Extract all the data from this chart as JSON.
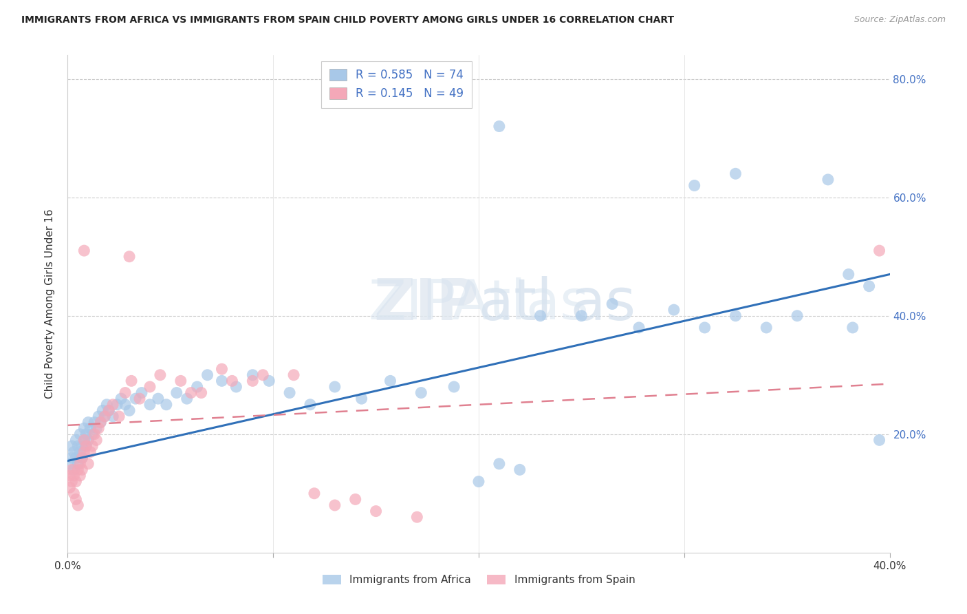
{
  "title": "IMMIGRANTS FROM AFRICA VS IMMIGRANTS FROM SPAIN CHILD POVERTY AMONG GIRLS UNDER 16 CORRELATION CHART",
  "source": "Source: ZipAtlas.com",
  "ylabel": "Child Poverty Among Girls Under 16",
  "xlim": [
    0.0,
    0.4
  ],
  "ylim": [
    0.0,
    0.84
  ],
  "series1_color": "#a8c8e8",
  "series2_color": "#f4a8b8",
  "trendline1_color": "#3070b8",
  "trendline2_color": "#e08090",
  "watermark": "ZIPAtlas",
  "legend_label1": "Immigrants from Africa",
  "legend_label2": "Immigrants from Spain",
  "legend_r1": "0.585",
  "legend_n1": "74",
  "legend_r2": "0.145",
  "legend_n2": "49",
  "tick_color": "#4472c4",
  "africa_x": [
    0.001,
    0.002,
    0.002,
    0.003,
    0.003,
    0.004,
    0.004,
    0.005,
    0.005,
    0.006,
    0.006,
    0.007,
    0.007,
    0.008,
    0.008,
    0.009,
    0.009,
    0.01,
    0.01,
    0.011,
    0.012,
    0.013,
    0.014,
    0.015,
    0.016,
    0.017,
    0.018,
    0.019,
    0.02,
    0.022,
    0.024,
    0.026,
    0.028,
    0.03,
    0.033,
    0.036,
    0.04,
    0.044,
    0.048,
    0.053,
    0.058,
    0.063,
    0.068,
    0.075,
    0.082,
    0.09,
    0.098,
    0.108,
    0.118,
    0.13,
    0.143,
    0.157,
    0.172,
    0.188,
    0.2,
    0.21,
    0.22,
    0.23,
    0.25,
    0.265,
    0.278,
    0.295,
    0.31,
    0.325,
    0.34,
    0.355,
    0.37,
    0.382,
    0.39,
    0.395,
    0.21,
    0.305,
    0.325,
    0.38
  ],
  "africa_y": [
    0.15,
    0.16,
    0.18,
    0.14,
    0.17,
    0.19,
    0.16,
    0.15,
    0.18,
    0.17,
    0.2,
    0.18,
    0.16,
    0.19,
    0.21,
    0.18,
    0.2,
    0.19,
    0.22,
    0.21,
    0.2,
    0.22,
    0.21,
    0.23,
    0.22,
    0.24,
    0.23,
    0.25,
    0.24,
    0.23,
    0.25,
    0.26,
    0.25,
    0.24,
    0.26,
    0.27,
    0.25,
    0.26,
    0.25,
    0.27,
    0.26,
    0.28,
    0.3,
    0.29,
    0.28,
    0.3,
    0.29,
    0.27,
    0.25,
    0.28,
    0.26,
    0.29,
    0.27,
    0.28,
    0.12,
    0.15,
    0.14,
    0.4,
    0.4,
    0.42,
    0.38,
    0.41,
    0.38,
    0.4,
    0.38,
    0.4,
    0.63,
    0.38,
    0.45,
    0.19,
    0.72,
    0.62,
    0.64,
    0.47
  ],
  "spain_x": [
    0.001,
    0.001,
    0.002,
    0.002,
    0.003,
    0.003,
    0.004,
    0.004,
    0.005,
    0.005,
    0.006,
    0.006,
    0.007,
    0.007,
    0.008,
    0.008,
    0.009,
    0.01,
    0.011,
    0.012,
    0.013,
    0.014,
    0.015,
    0.016,
    0.018,
    0.02,
    0.022,
    0.025,
    0.028,
    0.031,
    0.035,
    0.04,
    0.045,
    0.055,
    0.065,
    0.075,
    0.09,
    0.11,
    0.03,
    0.008,
    0.12,
    0.14,
    0.06,
    0.08,
    0.095,
    0.13,
    0.15,
    0.17,
    0.395
  ],
  "spain_y": [
    0.13,
    0.11,
    0.14,
    0.12,
    0.13,
    0.1,
    0.09,
    0.12,
    0.14,
    0.08,
    0.15,
    0.13,
    0.16,
    0.14,
    0.17,
    0.19,
    0.18,
    0.15,
    0.17,
    0.18,
    0.2,
    0.19,
    0.21,
    0.22,
    0.23,
    0.24,
    0.25,
    0.23,
    0.27,
    0.29,
    0.26,
    0.28,
    0.3,
    0.29,
    0.27,
    0.31,
    0.29,
    0.3,
    0.5,
    0.51,
    0.1,
    0.09,
    0.27,
    0.29,
    0.3,
    0.08,
    0.07,
    0.06,
    0.51
  ],
  "africa_trendline": [
    0.155,
    0.47
  ],
  "spain_trendline": [
    0.215,
    0.285
  ]
}
